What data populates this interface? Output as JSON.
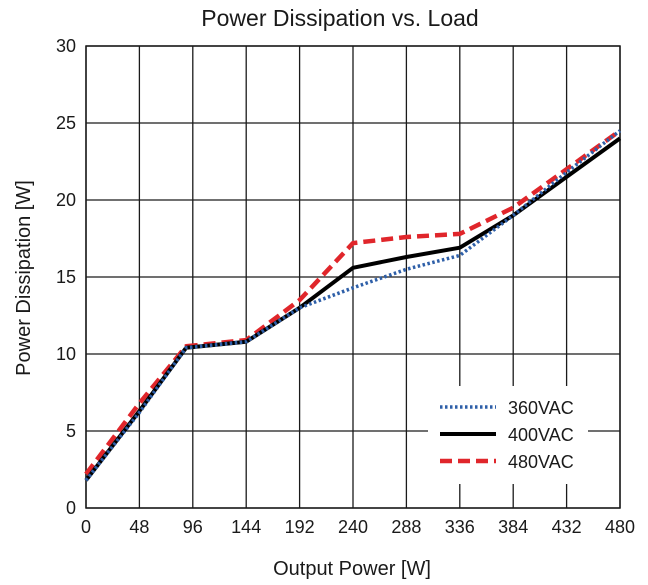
{
  "chart_data": {
    "type": "line",
    "title": "Power Dissipation vs. Load",
    "xlabel": "Output Power [W]",
    "ylabel": "Power Dissipation [W]",
    "xlim": [
      0,
      480
    ],
    "ylim": [
      0,
      30
    ],
    "xticks": [
      0,
      48,
      96,
      144,
      192,
      240,
      288,
      336,
      384,
      432,
      480
    ],
    "yticks": [
      0,
      5,
      10,
      15,
      20,
      25,
      30
    ],
    "grid": true,
    "legend_position": "bottom-right",
    "series": [
      {
        "name": "360VAC",
        "color": "#2e5fa8",
        "style": "dotted",
        "x": [
          0,
          48,
          90,
          144,
          192,
          240,
          288,
          336,
          384,
          432,
          480
        ],
        "y": [
          1.8,
          6.2,
          10.4,
          10.8,
          13.0,
          14.3,
          15.5,
          16.4,
          19.0,
          21.8,
          24.5
        ]
      },
      {
        "name": "400VAC",
        "color": "#000000",
        "style": "solid",
        "x": [
          0,
          48,
          90,
          144,
          192,
          240,
          288,
          336,
          384,
          432,
          480
        ],
        "y": [
          1.8,
          6.3,
          10.4,
          10.8,
          13.0,
          15.6,
          16.3,
          16.9,
          19.0,
          21.5,
          24.0
        ]
      },
      {
        "name": "480VAC",
        "color": "#e0262b",
        "style": "dashed",
        "x": [
          0,
          48,
          90,
          144,
          192,
          240,
          288,
          336,
          384,
          432,
          480
        ],
        "y": [
          2.2,
          6.8,
          10.5,
          10.9,
          13.5,
          17.2,
          17.6,
          17.8,
          19.5,
          22.0,
          24.5
        ]
      }
    ]
  }
}
